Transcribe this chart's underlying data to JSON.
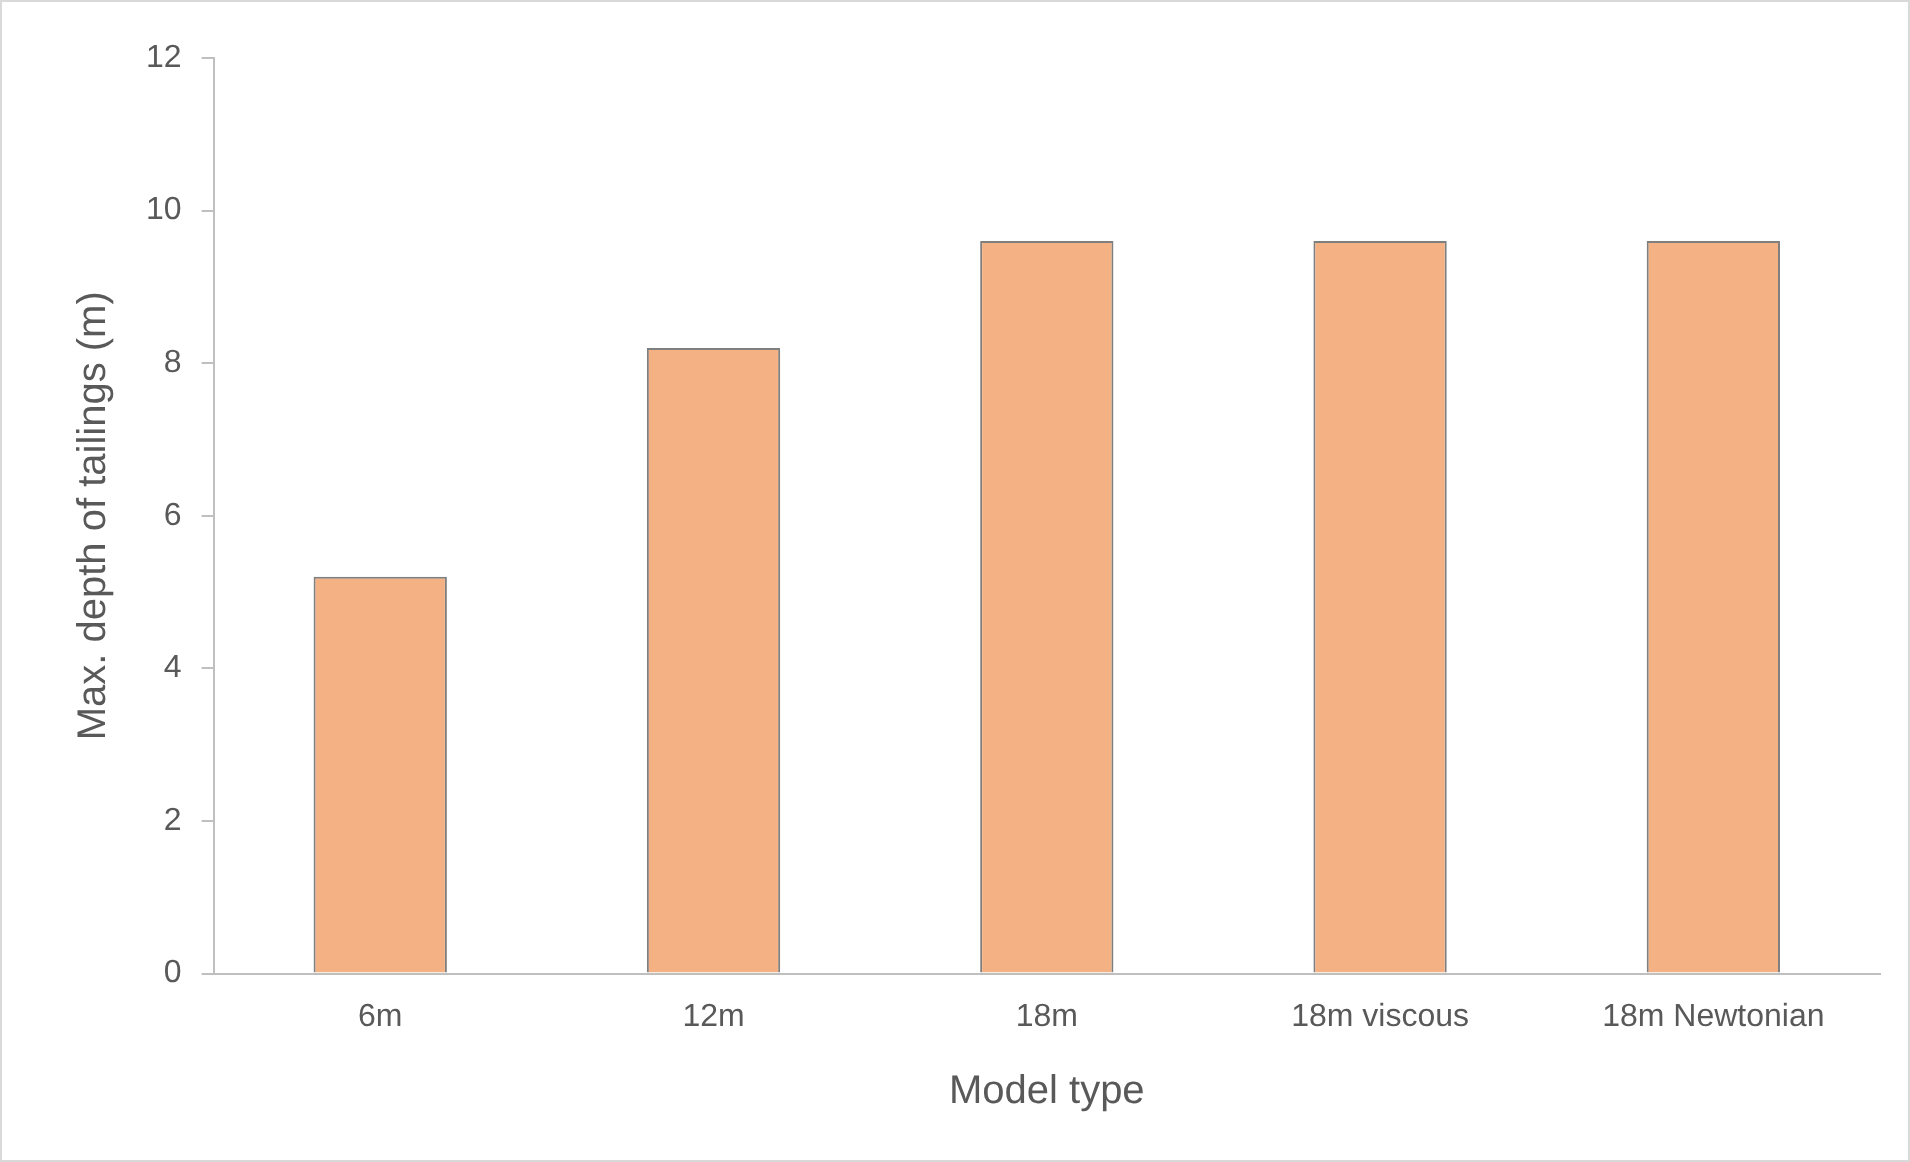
{
  "chart_data": {
    "type": "bar",
    "xlabel": "Model type",
    "ylabel": "Max. depth of tailings (m)",
    "categories": [
      "6m",
      "12m",
      "18m",
      "18m viscous",
      "18m Newtonian"
    ],
    "values": [
      5.2,
      8.2,
      9.6,
      9.6,
      9.6
    ],
    "color": "#f4b183",
    "ylim": [
      0,
      12
    ],
    "yticks": [
      0,
      2,
      4,
      6,
      8,
      10,
      12
    ],
    "grid": false,
    "legend": false
  }
}
